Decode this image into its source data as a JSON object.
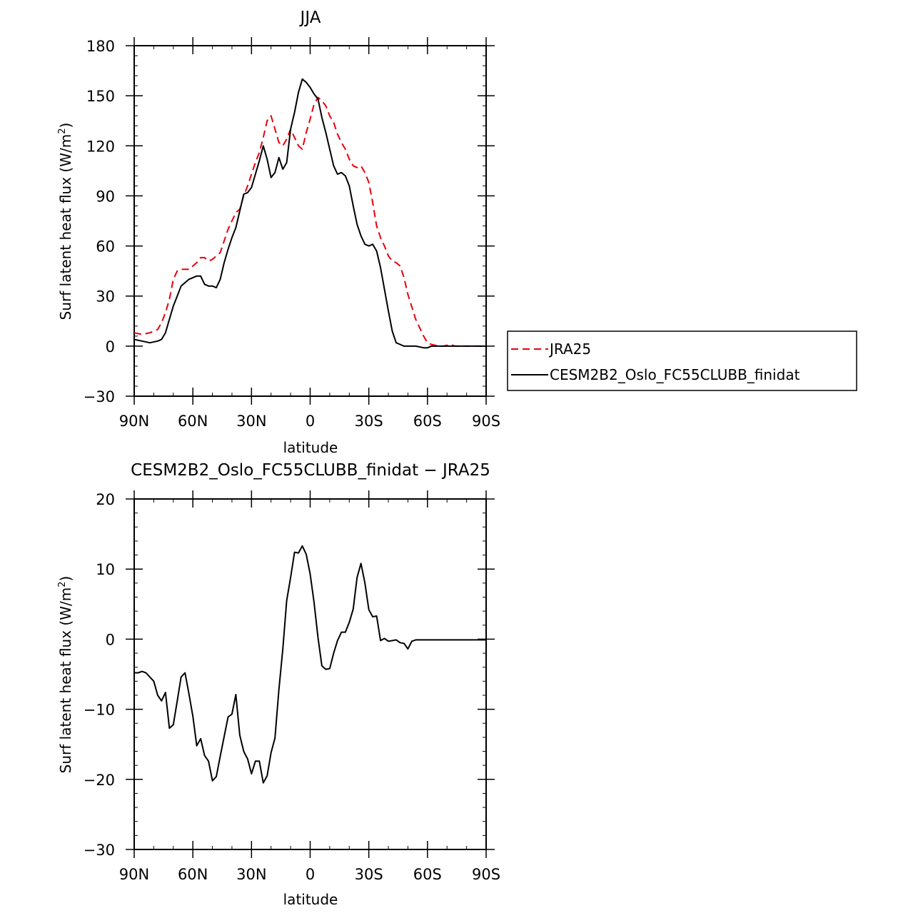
{
  "chart_data": [
    {
      "type": "line",
      "title": "JJA",
      "xlabel": "latitude",
      "ylabel": "Surf latent heat flux (W/m²)",
      "ylabel_main": "Surf latent heat flux (W/m",
      "ylabel_sup": "2",
      "ylabel_tail": ")",
      "xlim": [
        90,
        -90
      ],
      "ylim": [
        -30,
        180
      ],
      "xticks": [
        90,
        60,
        30,
        0,
        -30,
        -60,
        -90
      ],
      "xtick_labels": [
        "90N",
        "60N",
        "30N",
        "0",
        "30S",
        "60S",
        "90S"
      ],
      "yticks": [
        -30,
        0,
        30,
        60,
        90,
        120,
        150,
        180
      ],
      "ytick_labels": [
        "−30",
        "0",
        "30",
        "60",
        "90",
        "120",
        "150",
        "180"
      ],
      "legend": {
        "placement": "right",
        "entries": [
          "JRA25",
          "CESM2B2_Oslo_FC55CLUBB_finidat"
        ]
      },
      "series": [
        {
          "name": "JRA25",
          "color": "#e8000b",
          "dash": true,
          "x": [
            90,
            86,
            82,
            78,
            76,
            74,
            72,
            70,
            68,
            66,
            62,
            58,
            56,
            54,
            52,
            50,
            48,
            46,
            44,
            42,
            40,
            38,
            36,
            34,
            32,
            30,
            28,
            26,
            24,
            22,
            20,
            18,
            16,
            14,
            12,
            10,
            8,
            6,
            4,
            2,
            0,
            -2,
            -4,
            -6,
            -8,
            -10,
            -12,
            -14,
            -16,
            -18,
            -20,
            -22,
            -24,
            -26,
            -28,
            -30,
            -32,
            -34,
            -36,
            -38,
            -40,
            -42,
            -44,
            -46,
            -48,
            -50,
            -54,
            -58,
            -60,
            -62,
            -64,
            -66,
            -68,
            -70,
            -72,
            -74,
            -76,
            -80,
            -82,
            -84,
            -86,
            -88,
            -90
          ],
          "y": [
            8,
            7,
            8,
            10,
            14,
            20,
            28,
            40,
            45,
            46,
            46,
            50,
            53,
            53,
            51,
            52,
            54,
            56,
            63,
            70,
            75,
            80,
            82,
            90,
            96,
            103,
            110,
            116,
            125,
            135,
            138,
            130,
            122,
            120,
            124,
            130,
            125,
            120,
            118,
            128,
            136,
            145,
            149,
            147,
            144,
            138,
            134,
            127,
            122,
            118,
            112,
            108,
            107,
            108,
            104,
            98,
            86,
            72,
            65,
            60,
            54,
            51,
            50,
            48,
            41,
            31,
            16,
            6,
            2,
            1,
            0.5,
            0,
            0,
            0.5,
            1,
            0,
            0,
            0,
            0,
            0,
            0,
            0,
            0
          ]
        },
        {
          "name": "CESM2B2_Oslo_FC55CLUBB_finidat",
          "color": "#000000",
          "dash": false,
          "x": [
            90,
            86,
            82,
            78,
            76,
            74,
            72,
            70,
            68,
            66,
            62,
            58,
            56,
            54,
            52,
            50,
            48,
            46,
            44,
            42,
            40,
            38,
            36,
            34,
            32,
            30,
            28,
            26,
            24,
            22,
            20,
            18,
            16,
            14,
            12,
            10,
            8,
            6,
            4,
            2,
            0,
            -2,
            -4,
            -6,
            -8,
            -10,
            -12,
            -14,
            -16,
            -18,
            -20,
            -22,
            -24,
            -26,
            -28,
            -30,
            -32,
            -34,
            -36,
            -38,
            -40,
            -42,
            -44,
            -46,
            -48,
            -50,
            -54,
            -58,
            -60,
            -62,
            -64,
            -66,
            -68,
            -70,
            -72,
            -74,
            -76,
            -80,
            -82,
            -84,
            -86,
            -88,
            -90
          ],
          "y": [
            4,
            3,
            2,
            3,
            4,
            8,
            16,
            24,
            30,
            36,
            40,
            42,
            42,
            37,
            36,
            36,
            35,
            40,
            50,
            58,
            65,
            71,
            81,
            91,
            92,
            95,
            103,
            111,
            120,
            112,
            101,
            104,
            113,
            106,
            110,
            130,
            140,
            152,
            160,
            158,
            155,
            151,
            148,
            137,
            128,
            118,
            108,
            103,
            104,
            102,
            96,
            84,
            73,
            66,
            61,
            60,
            61,
            57,
            47,
            34,
            21,
            9,
            2,
            1,
            0,
            0,
            0,
            -1,
            -1,
            0,
            0,
            0,
            0,
            0,
            0,
            0,
            0,
            0,
            0,
            0,
            0,
            0,
            0
          ]
        }
      ]
    },
    {
      "type": "line",
      "title": "CESM2B2_Oslo_FC55CLUBB_finidat − JRA25",
      "xlabel": "latitude",
      "ylabel": "Surf latent heat flux (W/m²)",
      "ylabel_main": "Surf latent heat flux (W/m",
      "ylabel_sup": "2",
      "ylabel_tail": ")",
      "xlim": [
        90,
        -90
      ],
      "ylim": [
        -30,
        20
      ],
      "xticks": [
        90,
        60,
        30,
        0,
        -30,
        -60,
        -90
      ],
      "xtick_labels": [
        "90N",
        "60N",
        "30N",
        "0",
        "30S",
        "60S",
        "90S"
      ],
      "yticks": [
        -30,
        -20,
        -10,
        0,
        10,
        20
      ],
      "ytick_labels": [
        "−30",
        "−20",
        "−10",
        "0",
        "10",
        "20"
      ],
      "series": [
        {
          "color": "#000000",
          "dash": false,
          "x": [
            90,
            88,
            86,
            84,
            82,
            80,
            78,
            76,
            74,
            72,
            70,
            68,
            66,
            64,
            62,
            60,
            58,
            56,
            54,
            52,
            50,
            48,
            46,
            44,
            42,
            40,
            38,
            36,
            34,
            32,
            30,
            28,
            26,
            24,
            22,
            20,
            18,
            16,
            14,
            12,
            10,
            8,
            6,
            4,
            2,
            0,
            -2,
            -4,
            -6,
            -8,
            -10,
            -12,
            -14,
            -16,
            -18,
            -20,
            -22,
            -24,
            -26,
            -28,
            -30,
            -32,
            -34,
            -36,
            -38,
            -40,
            -42,
            -44,
            -46,
            -48,
            -50,
            -52,
            -54,
            -56,
            -58,
            -60,
            -62,
            -64,
            -66,
            -68,
            -70,
            -72,
            -74,
            -76,
            -78,
            -80,
            -82,
            -84,
            -86,
            -88,
            -90
          ],
          "y": [
            -4.8,
            -4.8,
            -4.6,
            -4.8,
            -5.4,
            -6,
            -8,
            -8.8,
            -7.6,
            -12.7,
            -12.2,
            -8.8,
            -5.4,
            -4.8,
            -7.8,
            -11,
            -15.2,
            -14.2,
            -16.6,
            -17.4,
            -20.2,
            -19.6,
            -16.7,
            -13.9,
            -11.1,
            -10.7,
            -7.9,
            -13.7,
            -16,
            -17.1,
            -19.2,
            -17.4,
            -17.4,
            -20.5,
            -19.5,
            -16.2,
            -14.1,
            -7.2,
            -1.4,
            5.5,
            8.8,
            12.4,
            12.3,
            13.3,
            12.1,
            9.3,
            5.2,
            0.2,
            -3.8,
            -4.3,
            -4.2,
            -2,
            -0.2,
            1,
            1,
            2.4,
            4.3,
            8.8,
            10.8,
            8,
            4.2,
            3.2,
            3.3,
            -0.2,
            0.1,
            -0.3,
            -0.2,
            -0.1,
            -0.5,
            -0.6,
            -1.4,
            -0.3,
            -0.1,
            -0.1,
            -0.1,
            -0.1,
            -0.1,
            -0.1,
            -0.1,
            -0.1,
            -0.1,
            -0.1,
            -0.1,
            -0.1,
            -0.1,
            -0.1,
            -0.1,
            -0.1,
            -0.1,
            -0.1,
            -0.1
          ]
        }
      ]
    }
  ]
}
